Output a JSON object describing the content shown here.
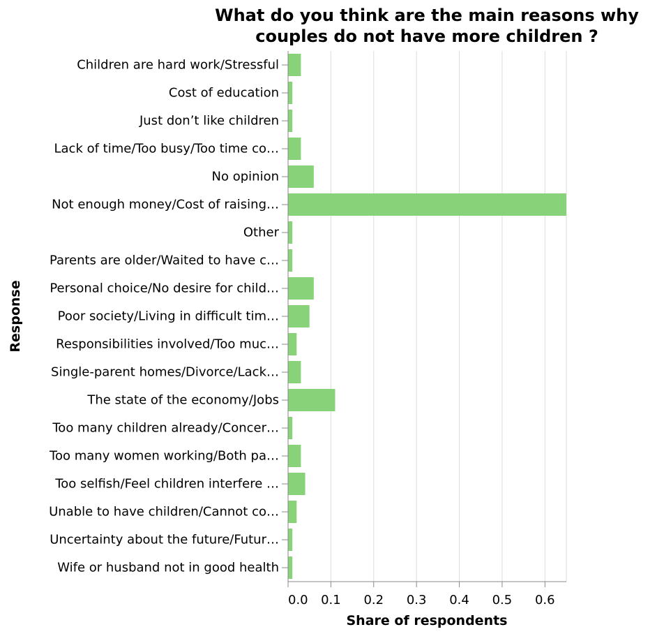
{
  "chart_data": {
    "type": "bar",
    "orientation": "horizontal",
    "title_lines": [
      "What do you think are the main reasons why",
      "couples do not have more children ?"
    ],
    "xlabel": "Share of respondents",
    "ylabel": "Response",
    "xlim": [
      0,
      0.65
    ],
    "xticks": [
      0,
      0.1,
      0.2,
      0.3,
      0.4,
      0.5,
      0.6
    ],
    "xtick_labels": [
      "0.0",
      "0.1",
      "0.2",
      "0.3",
      "0.4",
      "0.5",
      "0.6"
    ],
    "grid": true,
    "bar_color": "#88d27a",
    "categories": [
      "Children are hard work/Stressful",
      "Cost of education",
      "Just don’t like children",
      "Lack of time/Too busy/Too time co…",
      "No opinion",
      "Not enough money/Cost of raising…",
      "Other",
      "Parents are older/Waited to have c…",
      "Personal choice/No desire for child…",
      "Poor society/Living in difficult tim…",
      "Responsibilities involved/Too muc…",
      "Single-parent homes/Divorce/Lack…",
      "The state of the economy/Jobs",
      "Too many children already/Concer…",
      "Too many women working/Both pa…",
      "Too selfish/Feel children interfere …",
      "Unable to have children/Cannot co…",
      "Uncertainty about the future/Futur…",
      "Wife or husband not in good health"
    ],
    "values": [
      0.03,
      0.01,
      0.01,
      0.03,
      0.06,
      0.65,
      0.01,
      0.01,
      0.06,
      0.05,
      0.02,
      0.03,
      0.11,
      0.01,
      0.03,
      0.04,
      0.02,
      0.01,
      0.01
    ]
  }
}
